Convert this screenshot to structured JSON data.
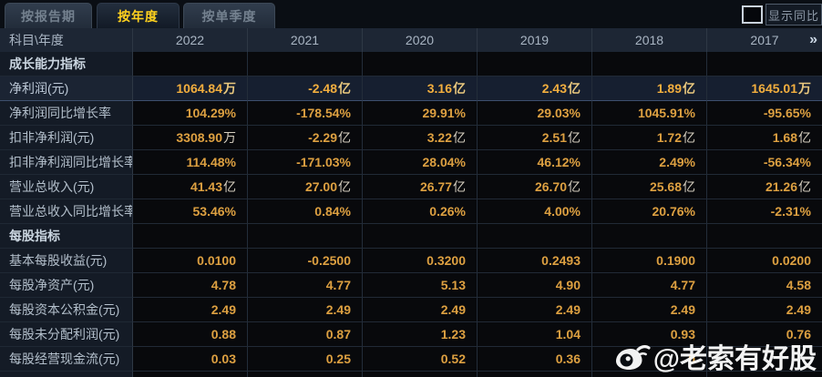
{
  "tabs": [
    {
      "name": "by-report-period",
      "label": "按报告期",
      "active": false
    },
    {
      "name": "by-year",
      "label": "按年度",
      "active": true
    },
    {
      "name": "by-single-quarter",
      "label": "按单季度",
      "active": false
    }
  ],
  "controls": {
    "show_yoy_label": "显示同比",
    "checkbox_checked": false
  },
  "table": {
    "corner_label": "科目\\年度",
    "years": [
      "2022",
      "2021",
      "2020",
      "2019",
      "2018",
      "2017"
    ],
    "more_icon": "»",
    "rows": [
      {
        "name": "section-growth",
        "type": "section",
        "label": "成长能力指标",
        "values": [
          "",
          "",
          "",
          "",
          "",
          ""
        ]
      },
      {
        "name": "net-profit",
        "type": "highlight",
        "label": "净利润(元)",
        "values": [
          "1064.84万",
          "-2.48亿",
          "3.16亿",
          "2.43亿",
          "1.89亿",
          "1645.01万"
        ]
      },
      {
        "name": "net-profit-yoy-growth",
        "type": "normal",
        "label": "净利润同比增长率",
        "values": [
          "104.29%",
          "-178.54%",
          "29.91%",
          "29.03%",
          "1045.91%",
          "-95.65%"
        ]
      },
      {
        "name": "deducted-net-profit",
        "type": "normal",
        "label": "扣非净利润(元)",
        "values": [
          "3308.90万",
          "-2.29亿",
          "3.22亿",
          "2.51亿",
          "1.72亿",
          "1.68亿"
        ]
      },
      {
        "name": "deducted-net-profit-yoy-growth",
        "type": "normal",
        "label": "扣非净利润同比增长率",
        "values": [
          "114.48%",
          "-171.03%",
          "28.04%",
          "46.12%",
          "2.49%",
          "-56.34%"
        ]
      },
      {
        "name": "total-operating-revenue",
        "type": "normal",
        "label": "营业总收入(元)",
        "values": [
          "41.43亿",
          "27.00亿",
          "26.77亿",
          "26.70亿",
          "25.68亿",
          "21.26亿"
        ]
      },
      {
        "name": "total-operating-revenue-yoy-growth",
        "type": "normal",
        "label": "营业总收入同比增长率",
        "values": [
          "53.46%",
          "0.84%",
          "0.26%",
          "4.00%",
          "20.76%",
          "-2.31%"
        ]
      },
      {
        "name": "section-per-share",
        "type": "section",
        "label": "每股指标",
        "values": [
          "",
          "",
          "",
          "",
          "",
          ""
        ]
      },
      {
        "name": "basic-eps",
        "type": "normal",
        "label": "基本每股收益(元)",
        "values": [
          "0.0100",
          "-0.2500",
          "0.3200",
          "0.2493",
          "0.1900",
          "0.0200"
        ]
      },
      {
        "name": "net-assets-per-share",
        "type": "normal",
        "label": "每股净资产(元)",
        "values": [
          "4.78",
          "4.77",
          "5.13",
          "4.90",
          "4.77",
          "4.58"
        ]
      },
      {
        "name": "capital-reserve-per-share",
        "type": "normal",
        "label": "每股资本公积金(元)",
        "values": [
          "2.49",
          "2.49",
          "2.49",
          "2.49",
          "2.49",
          "2.49"
        ]
      },
      {
        "name": "undistributed-profit-per-share",
        "type": "normal",
        "label": "每股未分配利润(元)",
        "values": [
          "0.88",
          "0.87",
          "1.23",
          "1.04",
          "0.93",
          "0.76"
        ]
      },
      {
        "name": "operating-cash-flow-per-share",
        "type": "normal",
        "label": "每股经营现金流(元)",
        "values": [
          "0.03",
          "0.25",
          "0.52",
          "0.36",
          "0",
          ""
        ]
      }
    ]
  },
  "watermark": {
    "icon": "weibo-icon",
    "text": "@老索有好股"
  },
  "colors": {
    "accent_gold": "#dda041",
    "highlight_gold": "#f2ae3e",
    "unit_text": "#d6cfc0",
    "active_tab_yellow": "#ffd21e",
    "header_bg": "#1d2634",
    "label_column_bg": "#141b26",
    "value_cell_bg": "#08090c",
    "highlight_row_bg": "#161f30",
    "page_bg": "#0a0e14"
  }
}
